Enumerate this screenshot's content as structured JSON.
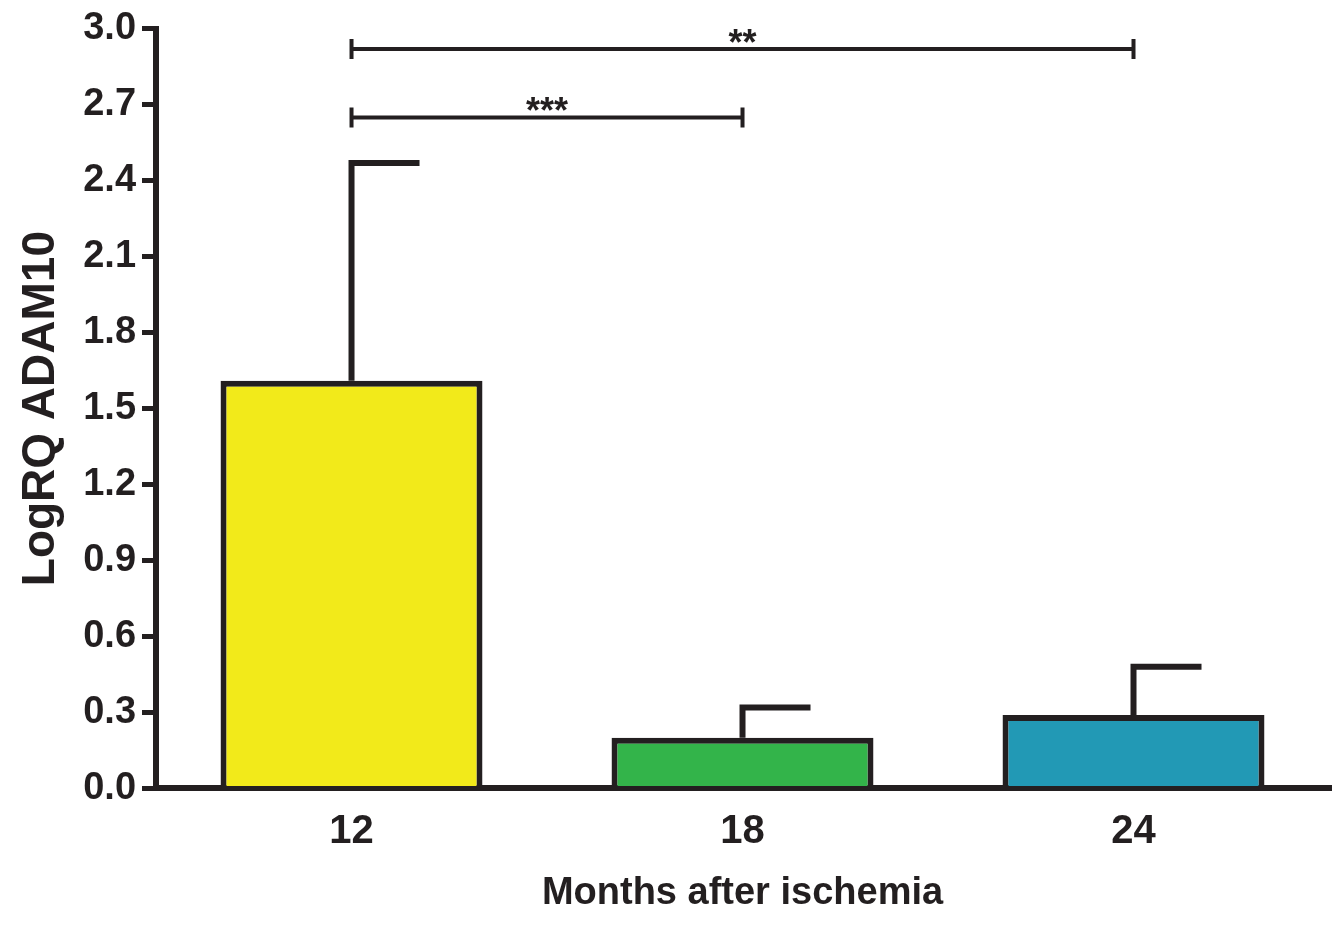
{
  "chart_data": {
    "type": "bar",
    "x_label": "Months after ischemia",
    "y_label": "LogRQ ADAM10",
    "categories": [
      "12",
      "18",
      "24"
    ],
    "values": [
      1.61,
      0.2,
      0.29
    ],
    "error_upper": [
      0.86,
      0.12,
      0.19
    ],
    "colors": [
      "#f2ea1a",
      "#33b44a",
      "#2299b5"
    ],
    "ylim": [
      0,
      3
    ],
    "yticks": [
      {
        "value": 0,
        "label": "0.0"
      },
      0.3,
      0.6,
      0.9,
      1.2,
      1.5,
      1.8,
      2.1,
      2.4,
      2.7,
      {
        "value": 3,
        "label": "3.0"
      }
    ],
    "grid": false,
    "annotations": [
      {
        "from": "12",
        "to": "18",
        "y": 2.65,
        "label": "***"
      },
      {
        "from": "12",
        "to": "24",
        "y": 2.92,
        "label": "**"
      }
    ]
  }
}
